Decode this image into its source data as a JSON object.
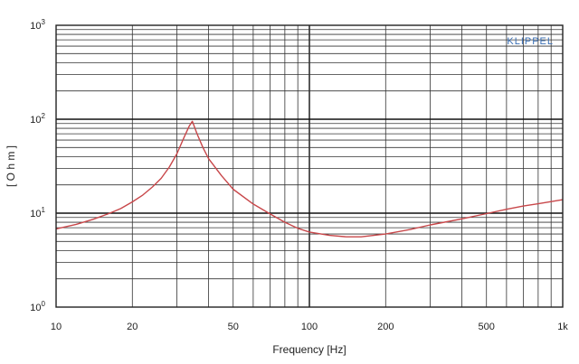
{
  "chart_data": {
    "type": "line",
    "xlabel": "Frequency [Hz]",
    "ylabel": "[ O h m ]",
    "x_scale": "log",
    "y_scale": "log",
    "xlim": [
      10,
      1000
    ],
    "ylim": [
      1,
      1000
    ],
    "x_ticks": [
      {
        "value": 10,
        "label": "10"
      },
      {
        "value": 20,
        "label": "20"
      },
      {
        "value": 50,
        "label": "50"
      },
      {
        "value": 100,
        "label": "100"
      },
      {
        "value": 200,
        "label": "200"
      },
      {
        "value": 500,
        "label": "500"
      },
      {
        "value": 1000,
        "label": "1k"
      }
    ],
    "y_ticks": [
      {
        "value": 1,
        "base": "10",
        "exp": "0"
      },
      {
        "value": 10,
        "base": "10",
        "exp": "1"
      },
      {
        "value": 100,
        "base": "10",
        "exp": "2"
      },
      {
        "value": 1000,
        "base": "10",
        "exp": "3"
      }
    ],
    "grid": true,
    "brand": "KLIPPEL",
    "line_color": "#c8474a",
    "series": [
      {
        "x": [
          10,
          12,
          14,
          16,
          18,
          20,
          22,
          24,
          26,
          28,
          30,
          32,
          33.5,
          34.5,
          36,
          38,
          40,
          45,
          50,
          60,
          70,
          80,
          90,
          100,
          120,
          140,
          160,
          200,
          250,
          300,
          400,
          500,
          600,
          700,
          800,
          1000
        ],
        "y": [
          6.8,
          7.6,
          8.6,
          9.8,
          11.2,
          13.2,
          15.6,
          19,
          23.5,
          31,
          43,
          64,
          84,
          95,
          70,
          50,
          38,
          25,
          18,
          12.5,
          9.8,
          8.0,
          6.9,
          6.3,
          5.8,
          5.6,
          5.6,
          6.0,
          6.7,
          7.5,
          8.7,
          9.9,
          11.0,
          11.9,
          12.6,
          13.9
        ]
      }
    ]
  }
}
